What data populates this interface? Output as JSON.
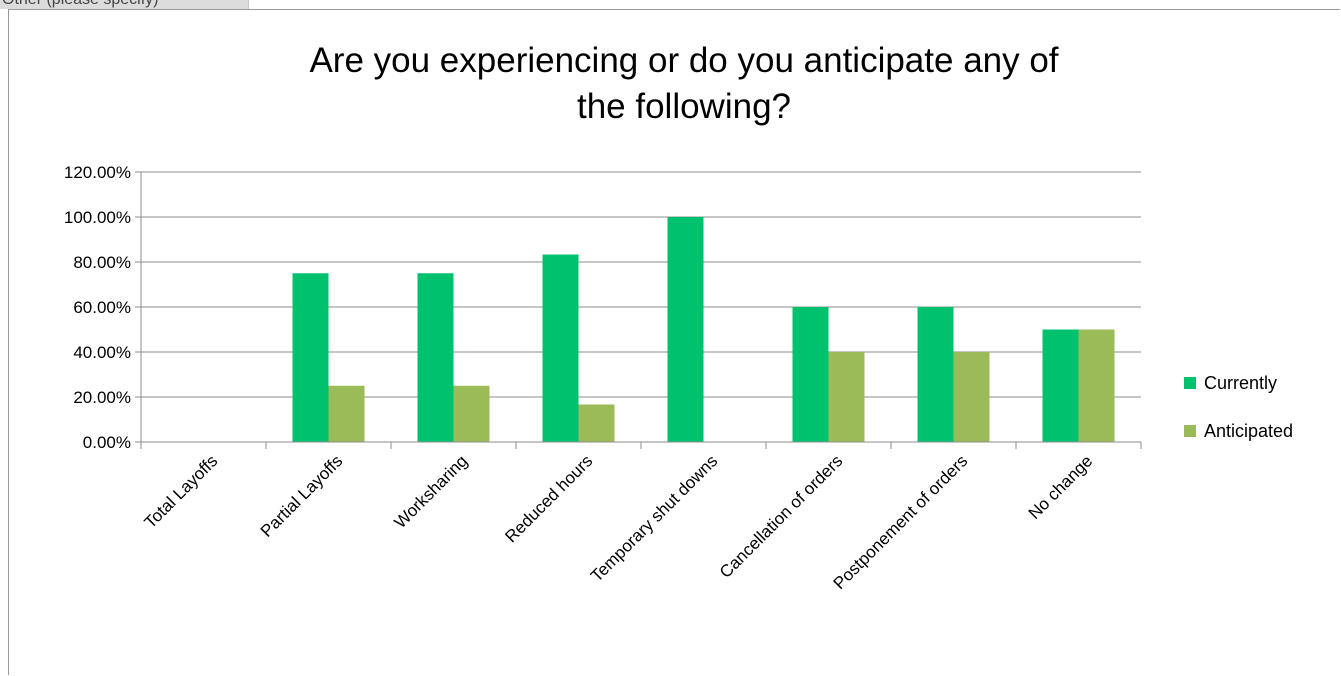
{
  "cell_above": {
    "text": "Other (please specify)"
  },
  "chart_data": {
    "type": "bar",
    "title_lines": [
      "Are you experiencing or do you anticipate any of",
      "the following?"
    ],
    "categories": [
      "Total Layoffs",
      "Partial Layoffs",
      "Worksharing",
      "Reduced hours",
      "Temporary shut downs",
      "Cancellation of orders",
      "Postponement of orders",
      "No change"
    ],
    "series": [
      {
        "name": "Currently",
        "color": "#00c16e",
        "values": [
          0,
          75,
          75,
          83.33,
          100,
          60,
          60,
          50
        ]
      },
      {
        "name": "Anticipated",
        "color": "#9bbb59",
        "values": [
          0,
          25,
          25,
          16.67,
          0,
          40,
          40,
          50
        ]
      }
    ],
    "y_ticks": [
      "0.00%",
      "20.00%",
      "40.00%",
      "60.00%",
      "80.00%",
      "100.00%",
      "120.00%"
    ],
    "ylim": [
      0,
      120
    ],
    "grid": true,
    "legend_position": "right",
    "xlabel": "",
    "ylabel": ""
  }
}
